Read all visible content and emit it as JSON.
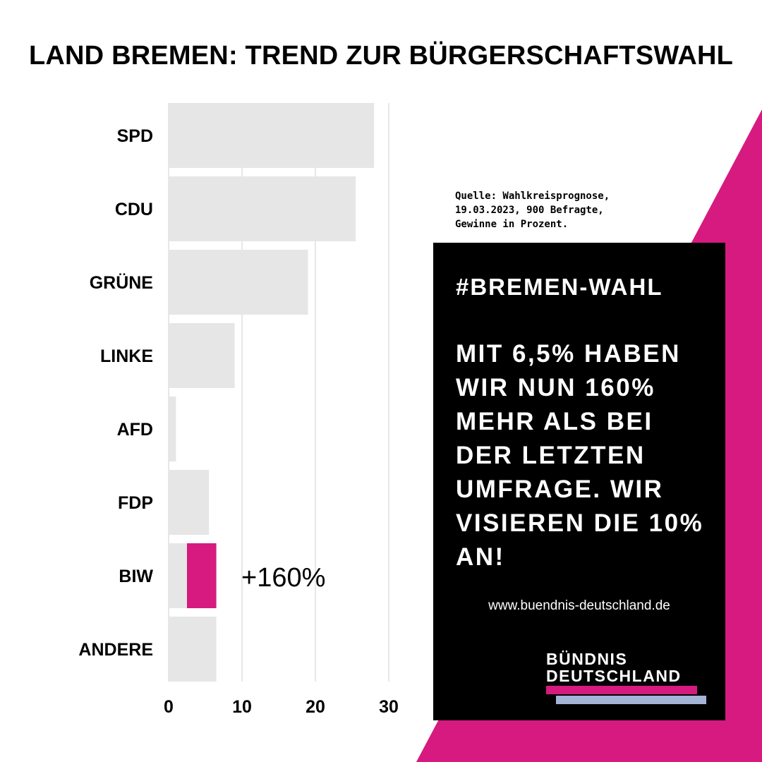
{
  "colors": {
    "accent_pink": "#d61a7f",
    "bar_gray": "#e6e6e6",
    "panel_black": "#000000",
    "logo_blue": "#a3b4d6"
  },
  "chart_data": {
    "type": "bar",
    "orientation": "horizontal",
    "title": "LAND BREMEN: TREND ZUR BÜRGERSCHAFTSWAHL",
    "categories": [
      "SPD",
      "CDU",
      "GRÜNE",
      "LINKE",
      "AFD",
      "FDP",
      "BIW",
      "ANDERE"
    ],
    "values": [
      28,
      25.5,
      19,
      9,
      1,
      5.5,
      6.5,
      6.5
    ],
    "highlight": {
      "category": "BIW",
      "previous": 2.5,
      "current": 6.5,
      "annotation": "+160%"
    },
    "xlim": [
      0,
      30
    ],
    "xticks": [
      "0",
      "10",
      "20",
      "30"
    ],
    "grid": true,
    "xlabel": "",
    "ylabel": ""
  },
  "source": {
    "text": "Quelle: Wahlkreisprognose,\n19.03.2023, 900 Befragte,\nGewinne in Prozent."
  },
  "panel": {
    "hashtag": "#BREMEN-WAHL",
    "message": "MIT 6,5% HABEN WIR NUN 160% MEHR ALS BEI DER LETZTEN UMFRAGE. WIR VISIEREN DIE 10% AN!",
    "url": "www.buendnis-deutschland.de",
    "logo_line1": "BÜNDNIS",
    "logo_line2": "DEUTSCHLAND"
  }
}
